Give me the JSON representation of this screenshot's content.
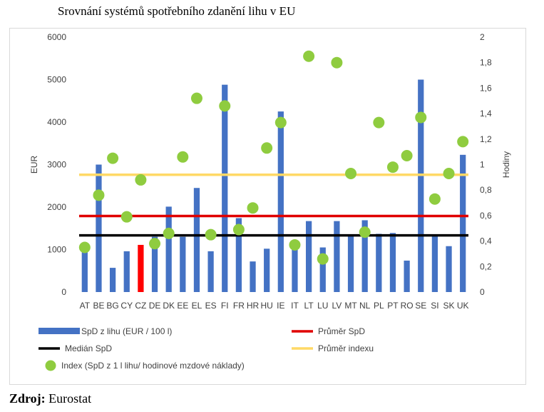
{
  "page": {
    "title": "Srovnání systémů spotřebního zdanění lihu v EU",
    "source_label": "Zdroj:",
    "source_value": "Eurostat"
  },
  "chart_data": {
    "type": "bar",
    "title": "",
    "ylabel": "EUR",
    "y2label": "Hodiny",
    "ylim": [
      0,
      6000
    ],
    "yticks": [
      0,
      1000,
      2000,
      3000,
      4000,
      5000,
      6000
    ],
    "y2lim": [
      0,
      2
    ],
    "y2ticks": [
      "0",
      "0,2",
      "0,4",
      "0,6",
      "0,8",
      "1",
      "1,2",
      "1,4",
      "1,6",
      "1,8",
      "2"
    ],
    "grid": false,
    "categories": [
      "AT",
      "BE",
      "BG",
      "CY",
      "CZ",
      "DE",
      "DK",
      "EE",
      "EL",
      "ES",
      "FI",
      "FR",
      "HR",
      "HU",
      "IE",
      "IT",
      "LT",
      "LU",
      "LV",
      "MT",
      "NL",
      "PL",
      "PT",
      "RO",
      "SE",
      "SI",
      "SK",
      "UK"
    ],
    "series": [
      {
        "name": "SpD z lihu (EUR / 100 l)",
        "kind": "bar",
        "axis": "left",
        "color": "#4472c4",
        "highlight_color": "#ff0000",
        "highlight_category": "CZ",
        "values": [
          1000,
          3000,
          570,
          960,
          1110,
          1300,
          2010,
          1300,
          2450,
          960,
          4880,
          1740,
          720,
          1020,
          4250,
          1000,
          1670,
          1050,
          1670,
          1340,
          1690,
          1370,
          1390,
          740,
          5000,
          1320,
          1080,
          3230
        ]
      },
      {
        "name": "Index (SpD z 1 l lihu/ hodinové mzdové náklady)",
        "kind": "scatter",
        "axis": "right",
        "color": "#8fcc3f",
        "values": [
          0.35,
          0.76,
          1.05,
          0.59,
          0.88,
          0.38,
          0.46,
          1.06,
          1.52,
          0.45,
          1.46,
          0.49,
          0.66,
          1.13,
          1.33,
          0.37,
          1.85,
          0.26,
          1.8,
          0.93,
          0.47,
          1.33,
          0.98,
          1.07,
          1.37,
          0.73,
          0.93,
          1.18
        ]
      }
    ],
    "reference_lines": [
      {
        "name": "Průměr SpD",
        "axis": "left",
        "value": 1790,
        "color": "#e00000"
      },
      {
        "name": "Medián SpD",
        "axis": "left",
        "value": 1335,
        "color": "#000000"
      },
      {
        "name": "Průměr indexu",
        "axis": "right",
        "value": 0.92,
        "color": "#ffd966"
      }
    ],
    "legend": {
      "placement": "bottom",
      "items": [
        {
          "label": "SpD z lihu (EUR / 100 l)",
          "symbol": "bar",
          "color": "#4472c4"
        },
        {
          "label": "Průměr SpD",
          "symbol": "line",
          "color": "#e00000"
        },
        {
          "label": "Medián SpD",
          "symbol": "line",
          "color": "#000000"
        },
        {
          "label": "Průměr indexu",
          "symbol": "line",
          "color": "#ffd966"
        },
        {
          "label": "Index (SpD z 1 l lihu/ hodinové mzdové náklady)",
          "symbol": "dot",
          "color": "#8fcc3f"
        }
      ]
    }
  }
}
